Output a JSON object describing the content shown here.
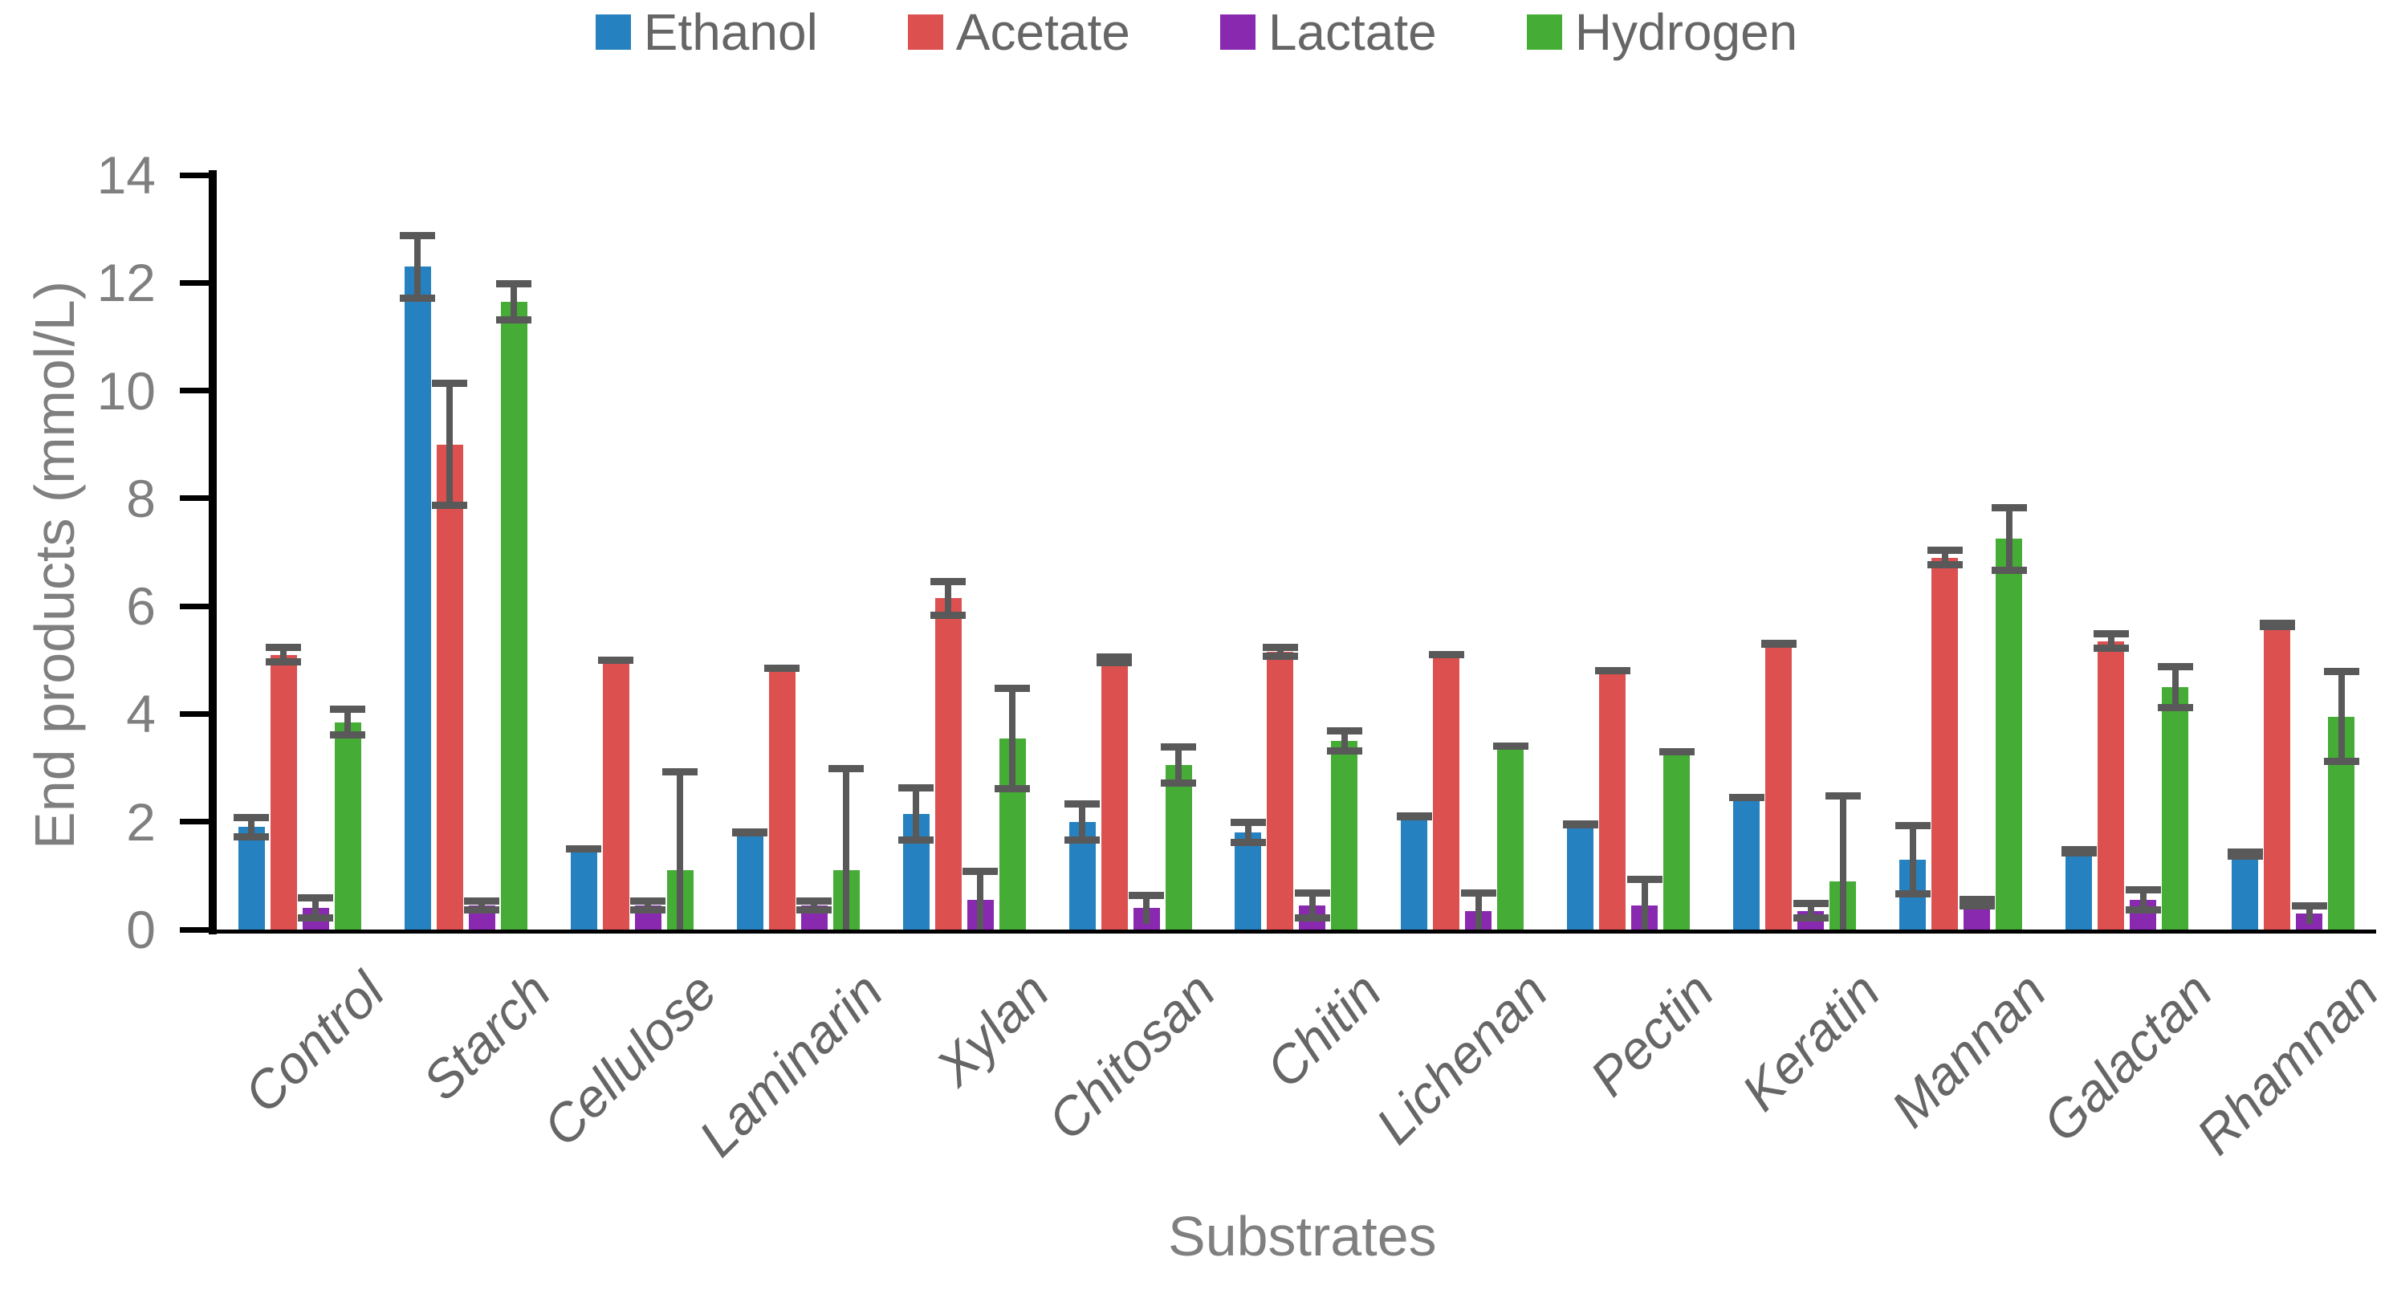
{
  "chart_data": {
    "type": "bar",
    "title": "",
    "xlabel": "Substrates",
    "ylabel": "End products (mmol/L)",
    "ylim": [
      0,
      14
    ],
    "yticks": [
      0,
      2,
      4,
      6,
      8,
      10,
      12,
      14
    ],
    "grid": false,
    "legend_position": "top",
    "error_color": "#595959",
    "axis_color": "#000000",
    "tick_label_color": "#7f7f7f",
    "categories": [
      "Control",
      "Starch",
      "Cellulose",
      "Laminarin",
      "Xylan",
      "Chitosan",
      "Chitin",
      "Lichenan",
      "Pectin",
      "Keratin",
      "Mannan",
      "Galactan",
      "Rhamnan"
    ],
    "series": [
      {
        "name": "Ethanol",
        "color": "#2581BF",
        "values": [
          1.9,
          12.3,
          1.5,
          1.8,
          2.15,
          2.0,
          1.8,
          2.1,
          1.95,
          2.45,
          1.3,
          1.45,
          1.4
        ],
        "errors": [
          0.25,
          0.65,
          0.07,
          0.07,
          0.55,
          0.4,
          0.25,
          0.07,
          0.07,
          0.07,
          0.7,
          0.1,
          0.1
        ]
      },
      {
        "name": "Acetate",
        "color": "#DD5050",
        "values": [
          5.1,
          9.0,
          5.0,
          4.85,
          6.15,
          5.0,
          5.15,
          5.1,
          4.8,
          5.3,
          6.9,
          5.35,
          5.65
        ],
        "errors": [
          0.2,
          1.2,
          0.07,
          0.07,
          0.38,
          0.12,
          0.15,
          0.07,
          0.07,
          0.07,
          0.2,
          0.2,
          0.1
        ]
      },
      {
        "name": "Lactate",
        "color": "#8929B0",
        "values": [
          0.4,
          0.45,
          0.45,
          0.45,
          0.55,
          0.4,
          0.45,
          0.35,
          0.45,
          0.35,
          0.5,
          0.55,
          0.3
        ],
        "errors": [
          0.25,
          0.15,
          0.15,
          0.15,
          0.6,
          0.3,
          0.3,
          0.4,
          0.55,
          0.2,
          0.12,
          0.25,
          0.2
        ]
      },
      {
        "name": "Hydrogen",
        "color": "#45AC35",
        "values": [
          3.85,
          11.65,
          1.1,
          1.1,
          3.55,
          3.05,
          3.5,
          3.4,
          3.3,
          0.9,
          7.25,
          4.5,
          3.95
        ],
        "errors": [
          0.3,
          0.4,
          1.9,
          1.95,
          1.0,
          0.4,
          0.25,
          0.07,
          0.07,
          1.65,
          0.65,
          0.45,
          0.9
        ]
      }
    ]
  }
}
